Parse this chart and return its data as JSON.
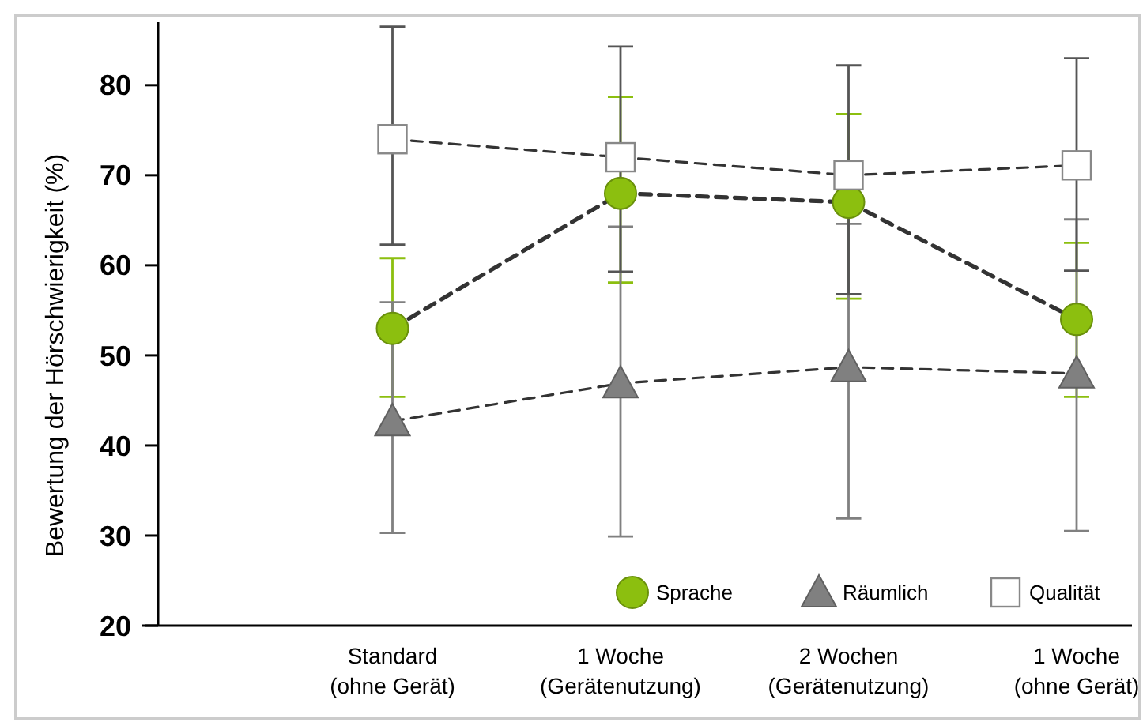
{
  "chart_data": {
    "type": "line",
    "ylabel": "Bewertung der Hörschwierigkeit (%)",
    "categories": [
      "Standard\n(ohne Gerät)",
      "1 Woche\n(Gerätenutzung)",
      "2 Wochen\n(Gerätenutzung)",
      "1 Woche\n(ohne Gerät)"
    ],
    "ylim": [
      20,
      87
    ],
    "yticks": [
      20,
      30,
      40,
      50,
      60,
      70,
      80
    ],
    "legend": "bottom right",
    "line_style": "dashed",
    "series": [
      {
        "name": "Sprache",
        "color": "#8cbf0f",
        "marker": "circle",
        "values": [
          53,
          68,
          67,
          54
        ],
        "errors": [
          [
            45.4,
            60.8
          ],
          [
            58.1,
            78.7
          ],
          [
            56.3,
            76.8
          ],
          [
            45.4,
            62.5
          ]
        ]
      },
      {
        "name": "Räumlich",
        "color": "#808080",
        "marker": "triangle",
        "values": [
          42.7,
          46.9,
          48.7,
          48
        ],
        "errors": [
          [
            30.3,
            55.9
          ],
          [
            29.9,
            64.3
          ],
          [
            31.9,
            64.6
          ],
          [
            30.5,
            65.1
          ]
        ]
      },
      {
        "name": "Qualität",
        "color": "#ffffff",
        "marker": "square",
        "values": [
          74,
          72,
          70,
          71.1
        ],
        "errors": [
          [
            62.3,
            86.5
          ],
          [
            59.3,
            84.3
          ],
          [
            56.8,
            82.2
          ],
          [
            59.4,
            83
          ]
        ]
      }
    ]
  }
}
